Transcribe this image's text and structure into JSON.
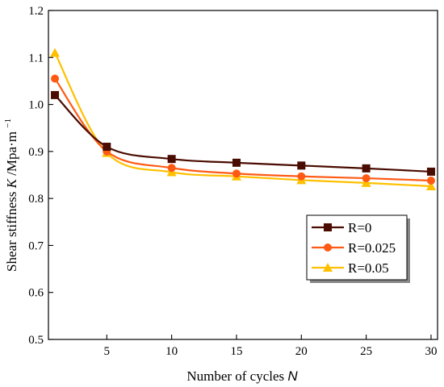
{
  "chart_data": {
    "type": "line",
    "xlabel": "Number of cycles",
    "xlabel_var": "N",
    "ylabel": "Shear stiffness",
    "ylabel_var": "K",
    "ylabel_unit": "/Mpa·m",
    "ylabel_exp": "−1",
    "xlim": [
      0.5,
      30.5
    ],
    "ylim": [
      0.5,
      1.2
    ],
    "xticks": [
      5,
      10,
      15,
      20,
      25,
      30
    ],
    "yticks": [
      0.5,
      0.6,
      0.7,
      0.8,
      0.9,
      1.0,
      1.1,
      1.2
    ],
    "x": [
      1,
      5,
      10,
      15,
      20,
      25,
      30
    ],
    "series": [
      {
        "name": "R=0",
        "values": [
          1.02,
          0.91,
          0.884,
          0.876,
          0.87,
          0.864,
          0.857
        ],
        "color": "#4a0c00",
        "marker": "square"
      },
      {
        "name": "R=0.025",
        "values": [
          1.055,
          0.9,
          0.865,
          0.853,
          0.847,
          0.843,
          0.838
        ],
        "color": "#ff5a14",
        "marker": "circle"
      },
      {
        "name": "R=0.05",
        "values": [
          1.11,
          0.897,
          0.856,
          0.847,
          0.839,
          0.833,
          0.826
        ],
        "color": "#ffc000",
        "marker": "triangle"
      }
    ],
    "legend_position": "lower-right",
    "grid": false
  }
}
